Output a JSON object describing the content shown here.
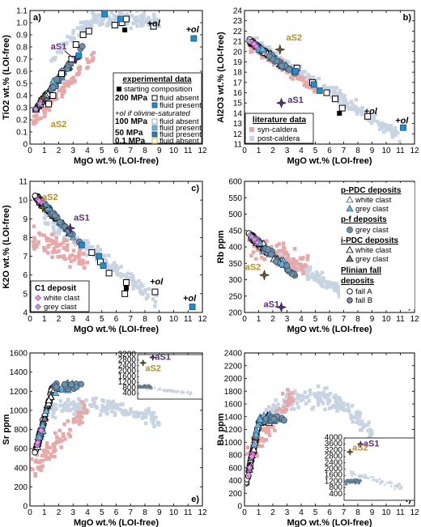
{
  "figure": {
    "xlabel": "MgO wt.% (LOI-free)"
  },
  "colors": {
    "syn_caldera": "#e8a8a8",
    "post_caldera": "#c8d4e2",
    "pdc_fill": "#6fb3dc",
    "grey_fill": "#7f8e9c",
    "c1_white": "#f58ee8",
    "c1_grey": "#b8a0dc",
    "aS1": "#5b2c83",
    "aS2": "#bf8d1f",
    "exp_blue": "#1d8fd1",
    "exp_yellow": "#e7c24a"
  },
  "chart_data": [
    {
      "id": "a",
      "type": "scatter",
      "panel_label": "a)",
      "ylabel": "TiO2 wt.% (LOI-free)",
      "xlim": [
        0,
        12
      ],
      "ylim": [
        0,
        1.1
      ],
      "xticks": [
        "0",
        "1",
        "2",
        "3",
        "4",
        "5",
        "6",
        "7",
        "8",
        "9",
        "10",
        "11",
        "12"
      ],
      "yticks": [
        "0",
        "0.1",
        "0.2",
        "0.3",
        "0.4",
        "0.5",
        "0.6",
        "0.7",
        "0.8",
        "0.9",
        "1.0",
        "1.1"
      ],
      "annotations": [
        {
          "text": "aS1",
          "x": 2.0,
          "y": 0.78
        },
        {
          "text": "aS2",
          "x": 2.0,
          "y": 0.14
        },
        {
          "text": "+ol",
          "x": 8.6,
          "y": 0.97
        },
        {
          "text": "+ol",
          "x": 11.3,
          "y": 0.92
        }
      ],
      "legend": {
        "title": "experimental data",
        "starting_composition": "starting composition",
        "p200": "200 MPa",
        "fluid_absent": "fluid absent",
        "fluid_present": "fluid present",
        "ol_note": "+ol if olivine-saturated",
        "p100": "100 MPa",
        "p50": "50 MPa",
        "p01": "0.1 MPa"
      },
      "series": [
        {
          "name": "aS1",
          "x": [
            3.2
          ],
          "y": [
            0.7
          ]
        },
        {
          "name": "aS2",
          "x": [
            0.9
          ],
          "y": [
            0.38
          ]
        },
        {
          "name": "starting composition",
          "x": [
            6.6
          ],
          "y": [
            0.94
          ]
        },
        {
          "name": "exp open",
          "x": [
            5.9,
            6.4,
            6.7,
            8.6,
            4.1,
            3.7,
            3.2,
            2.9,
            2.2,
            1.6,
            1.3
          ],
          "y": [
            0.98,
            1.0,
            1.03,
            0.97,
            0.93,
            0.9,
            0.82,
            0.7,
            0.58,
            0.4,
            0.33
          ]
        },
        {
          "name": "exp blue",
          "x": [
            5.2,
            6.3,
            11.4,
            3.4
          ],
          "y": [
            1.07,
            1.03,
            0.87,
            0.73
          ]
        }
      ]
    },
    {
      "id": "b",
      "type": "scatter",
      "panel_label": "b)",
      "ylabel": "Al2O3 wt.% (LOI-free)",
      "xlim": [
        0,
        12
      ],
      "ylim": [
        11,
        24
      ],
      "xticks": [
        "0",
        "1",
        "2",
        "3",
        "4",
        "5",
        "6",
        "7",
        "8",
        "9",
        "10",
        "11",
        "12"
      ],
      "yticks": [
        "11",
        "12",
        "13",
        "14",
        "15",
        "16",
        "17",
        "18",
        "19",
        "20",
        "21",
        "22",
        "23",
        "24"
      ],
      "annotations": [
        {
          "text": "aS2",
          "x": 3.5,
          "y": 21.1
        },
        {
          "text": "aS1",
          "x": 3.6,
          "y": 15.0
        },
        {
          "text": "+ol",
          "x": 8.9,
          "y": 13.9
        },
        {
          "text": "+ol",
          "x": 11.1,
          "y": 13.0
        }
      ],
      "legend": {
        "title": "literature data",
        "syn": "syn-caldera",
        "post": "post-caldera"
      },
      "series": [
        {
          "name": "aS2",
          "x": [
            2.5
          ],
          "y": [
            20.2
          ]
        },
        {
          "name": "aS1",
          "x": [
            2.6
          ],
          "y": [
            15.0
          ]
        },
        {
          "name": "starting composition",
          "x": [
            6.7
          ],
          "y": [
            14.0
          ]
        },
        {
          "name": "exp open",
          "x": [
            8.7,
            6.9,
            6.4,
            5.8,
            4.8,
            3.7
          ],
          "y": [
            13.7,
            14.5,
            15.4,
            16.0,
            17.0,
            18.4
          ]
        },
        {
          "name": "exp blue",
          "x": [
            11.2,
            5.3,
            4.9,
            3.6
          ],
          "y": [
            12.6,
            16.2,
            16.8,
            18.1
          ]
        }
      ]
    },
    {
      "id": "c",
      "type": "scatter",
      "panel_label": "c)",
      "ylabel": "K2O wt.% (LOI-free)",
      "xlim": [
        0,
        12
      ],
      "ylim": [
        4,
        11
      ],
      "xticks": [
        "0",
        "1",
        "2",
        "3",
        "4",
        "5",
        "6",
        "7",
        "8",
        "9",
        "10",
        "11",
        "12"
      ],
      "yticks": [
        "4",
        "5",
        "6",
        "7",
        "8",
        "9",
        "10",
        "11"
      ],
      "annotations": [
        {
          "text": "aS2",
          "x": 1.4,
          "y": 10.0
        },
        {
          "text": "aS1",
          "x": 3.6,
          "y": 8.9
        },
        {
          "text": "+ol",
          "x": 8.8,
          "y": 5.5
        },
        {
          "text": "+ol",
          "x": 11.1,
          "y": 4.6
        }
      ],
      "legend": {
        "title": "C1 deposit",
        "white": "white clast",
        "grey": "grey clast"
      },
      "series": [
        {
          "name": "aS2",
          "x": [
            0.9
          ],
          "y": [
            9.6
          ]
        },
        {
          "name": "aS1",
          "x": [
            2.8
          ],
          "y": [
            8.5
          ]
        },
        {
          "name": "starting composition",
          "x": [
            6.7
          ],
          "y": [
            5.3
          ]
        },
        {
          "name": "exp open",
          "x": [
            8.7,
            6.6,
            6.7,
            5.5,
            4.9,
            4.3
          ],
          "y": [
            5.1,
            5.0,
            5.6,
            6.1,
            6.7,
            7.2
          ]
        },
        {
          "name": "exp blue",
          "x": [
            11.3,
            5.1,
            4.8,
            3.6
          ],
          "y": [
            4.3,
            6.5,
            7.0,
            7.6
          ]
        }
      ]
    },
    {
      "id": "d",
      "type": "scatter",
      "panel_label": "d)",
      "ylabel": "Rb ppm",
      "xlim": [
        0,
        12
      ],
      "ylim": [
        200,
        600
      ],
      "xticks": [
        "0",
        "1",
        "2",
        "3",
        "4",
        "5",
        "6",
        "7",
        "8",
        "9",
        "10",
        "11",
        "12"
      ],
      "yticks": [
        "200",
        "250",
        "300",
        "350",
        "400",
        "450",
        "500",
        "550",
        "600"
      ],
      "annotations": [
        {
          "text": "aS2",
          "x": 0.6,
          "y": 330
        },
        {
          "text": "aS1",
          "x": 1.9,
          "y": 216
        }
      ],
      "legend": {
        "ppdc": "p-PDC deposits",
        "ppdc_white": "white clast",
        "ppdc_grey": "grey clast",
        "pf": "p-f deposits",
        "pf_grey": "grey clast",
        "ipdc": "i-PDC deposits",
        "ipdc_white": "white clast",
        "ipdc_grey": "grey clast",
        "plinian": "Plinian fall",
        "plinian2": "deposits",
        "fallA": "fall A",
        "fallB": "fall B"
      },
      "series": [
        {
          "name": "aS2",
          "x": [
            1.4
          ],
          "y": [
            314
          ]
        },
        {
          "name": "aS1",
          "x": [
            2.6
          ],
          "y": [
            216
          ]
        }
      ]
    },
    {
      "id": "e",
      "type": "scatter",
      "panel_label": "e)",
      "ylabel": "Sr ppm",
      "xlim": [
        0,
        12
      ],
      "ylim": [
        0,
        1600
      ],
      "xticks": [
        "0",
        "1",
        "2",
        "3",
        "4",
        "5",
        "6",
        "7",
        "8",
        "9",
        "10",
        "11",
        "12"
      ],
      "yticks": [
        "0",
        "200",
        "400",
        "600",
        "800",
        "1000",
        "1200",
        "1400",
        "1600"
      ],
      "inset": {
        "ylim": [
          0,
          3200
        ],
        "yticks": [
          "400",
          "800",
          "1200",
          "1600",
          "2000",
          "2400",
          "2800",
          "3200"
        ],
        "annotations": [
          {
            "text": "aS1",
            "x": 2.8,
            "y": 3000
          },
          {
            "text": "aS2",
            "x": 1.0,
            "y": 2600
          }
        ]
      }
    },
    {
      "id": "f",
      "type": "scatter",
      "panel_label": "f)",
      "ylabel": "Ba ppm",
      "xlim": [
        0,
        12
      ],
      "ylim": [
        0,
        2400
      ],
      "xticks": [
        "0",
        "1",
        "2",
        "3",
        "4",
        "5",
        "6",
        "7",
        "8",
        "9",
        "10",
        "11",
        "12"
      ],
      "yticks": [
        "0",
        "200",
        "400",
        "600",
        "800",
        "1000",
        "1200",
        "1400",
        "1600",
        "1800",
        "2000",
        "2200",
        "2400"
      ],
      "inset": {
        "ylim": [
          0,
          4000
        ],
        "yticks": [
          "400",
          "800",
          "1200",
          "1600",
          "2000",
          "2400",
          "2800",
          "3200",
          "3600",
          "4000"
        ],
        "annotations": [
          {
            "text": "aS1",
            "x": 2.8,
            "y": 3600
          },
          {
            "text": "aS2",
            "x": 1.0,
            "y": 3100
          }
        ]
      }
    }
  ]
}
